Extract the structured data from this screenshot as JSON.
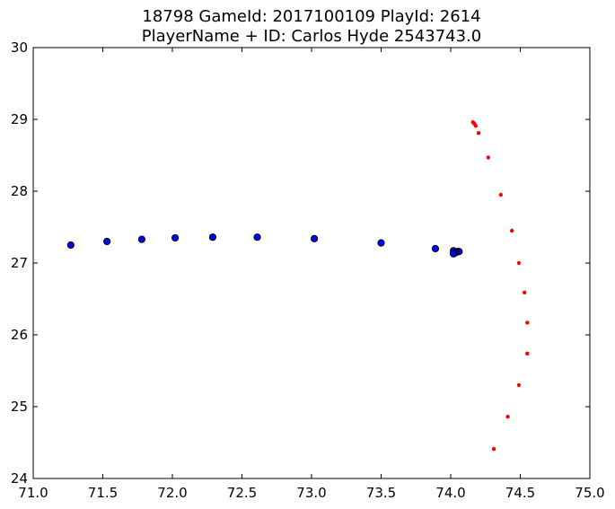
{
  "chart_data": {
    "type": "scatter",
    "title_lines": [
      "18798 GameId: 2017100109 PlayId: 2614",
      "PlayerName + ID: Carlos Hyde 2543743.0"
    ],
    "xlabel": "",
    "ylabel": "",
    "xlim": [
      71.0,
      75.0
    ],
    "ylim": [
      24,
      30
    ],
    "xticks": [
      71.0,
      71.5,
      72.0,
      72.5,
      73.0,
      73.5,
      74.0,
      74.5,
      75.0
    ],
    "yticks": [
      24,
      25,
      26,
      27,
      28,
      29,
      30
    ],
    "grid": false,
    "legend": "none",
    "series": [
      {
        "color": "#0000ff",
        "marker": "large-circle",
        "points": [
          [
            71.27,
            27.25
          ],
          [
            71.53,
            27.3
          ],
          [
            71.78,
            27.33
          ],
          [
            72.02,
            27.35
          ],
          [
            72.29,
            27.36
          ],
          [
            72.61,
            27.36
          ],
          [
            73.02,
            27.34
          ],
          [
            73.5,
            27.28
          ],
          [
            73.89,
            27.2
          ],
          [
            74.02,
            27.17
          ],
          [
            74.05,
            27.16
          ],
          [
            74.06,
            27.16
          ],
          [
            74.04,
            27.15
          ],
          [
            74.03,
            27.14
          ],
          [
            74.02,
            27.13
          ],
          [
            74.02,
            27.13
          ]
        ]
      },
      {
        "color": "#ff0000",
        "marker": "small-dot",
        "points": [
          [
            74.16,
            28.96
          ],
          [
            74.17,
            28.94
          ],
          [
            74.18,
            28.91
          ],
          [
            74.2,
            28.81
          ],
          [
            74.27,
            28.47
          ],
          [
            74.36,
            27.95
          ],
          [
            74.44,
            27.45
          ],
          [
            74.49,
            27.0
          ],
          [
            74.53,
            26.59
          ],
          [
            74.55,
            26.17
          ],
          [
            74.55,
            25.74
          ],
          [
            74.49,
            25.3
          ],
          [
            74.41,
            24.86
          ],
          [
            74.31,
            24.41
          ]
        ]
      }
    ]
  }
}
